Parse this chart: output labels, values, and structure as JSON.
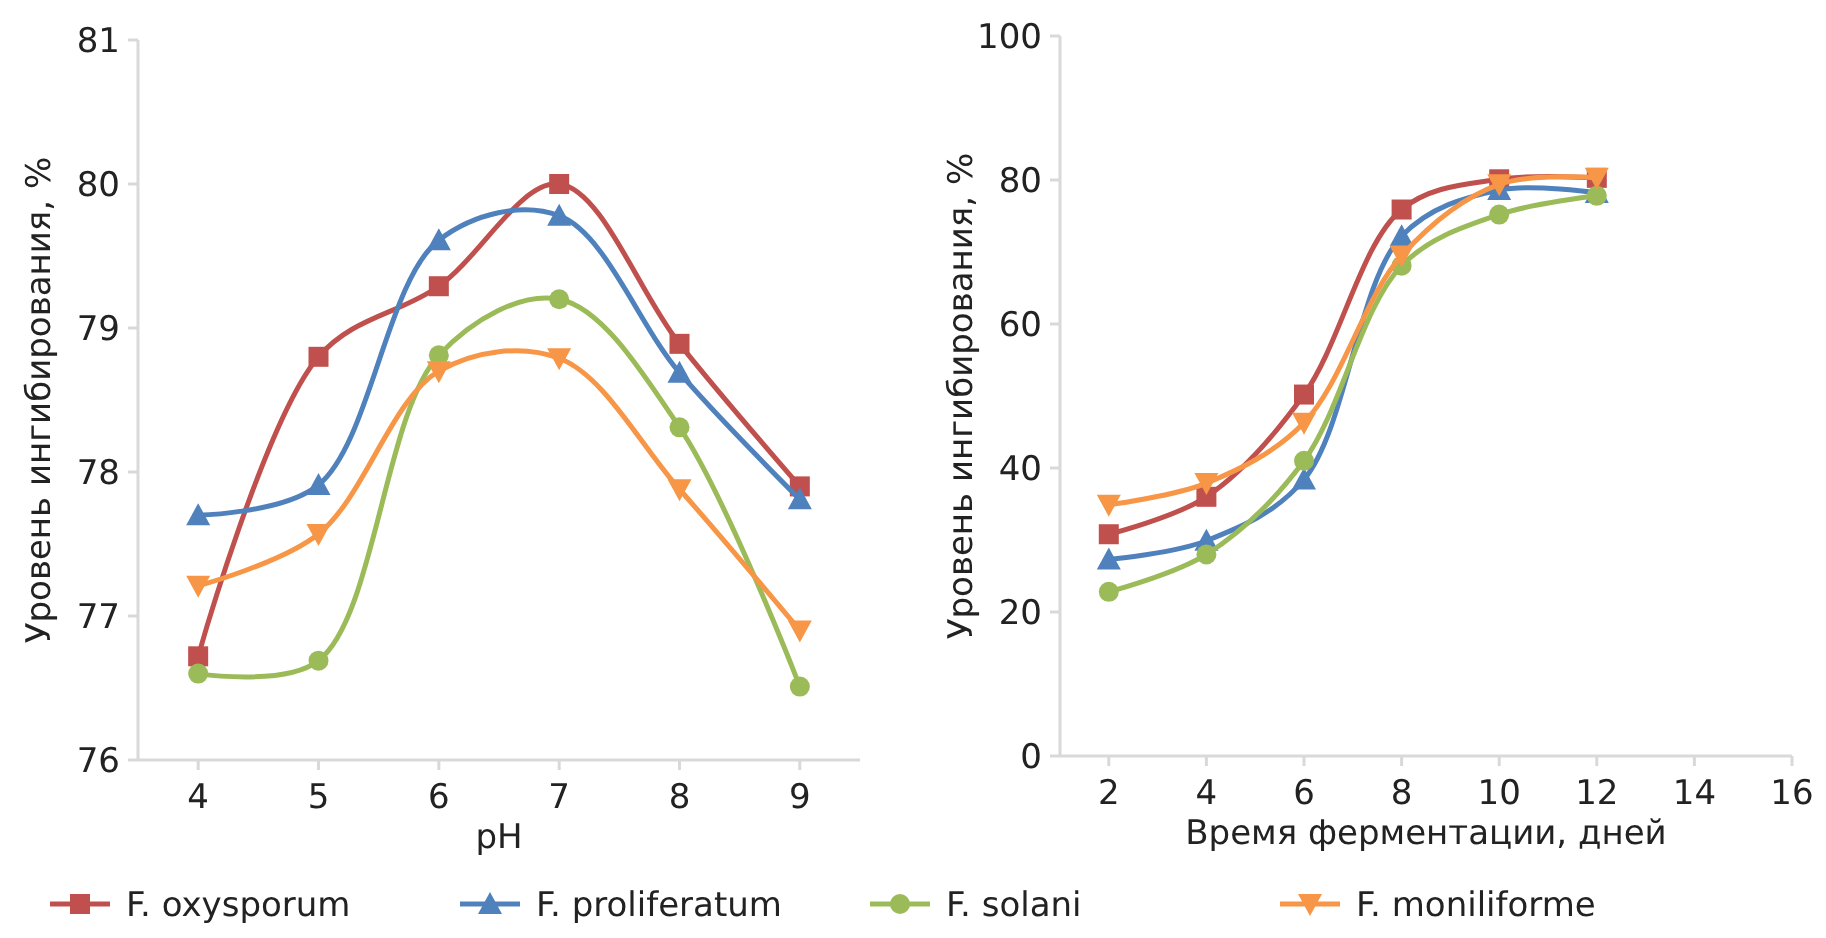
{
  "chart_data": [
    {
      "type": "line",
      "xlabel": "pH",
      "ylabel": "Уровень ингибирования, %",
      "x": [
        4,
        5,
        6,
        7,
        8,
        9
      ],
      "xlim": [
        3.5,
        9.5
      ],
      "xticks": [
        4,
        5,
        6,
        7,
        8,
        9
      ],
      "ylim": [
        76,
        81
      ],
      "yticks": [
        76,
        77,
        78,
        79,
        80,
        81
      ],
      "grid": false,
      "legend": "bottom",
      "series": [
        {
          "name": "F. oxysporum",
          "color": "#c0504d",
          "marker": "square",
          "values": [
            76.72,
            78.8,
            79.29,
            80.0,
            78.89,
            77.9
          ]
        },
        {
          "name": "F. proliferatum",
          "color": "#4f81bd",
          "marker": "triangle",
          "values": [
            77.7,
            77.91,
            79.61,
            79.78,
            78.69,
            77.81
          ]
        },
        {
          "name": "F. solani",
          "color": "#9bbb59",
          "marker": "circle",
          "values": [
            76.6,
            76.69,
            78.81,
            79.2,
            78.31,
            76.51
          ]
        },
        {
          "name": "F. moniliforme",
          "color": "#f79646",
          "marker": "triangle-down",
          "values": [
            77.21,
            77.57,
            78.7,
            78.79,
            77.88,
            76.9
          ]
        }
      ]
    },
    {
      "type": "line",
      "xlabel": "Время ферментации, дней",
      "ylabel": "Уровень ингибирования, %",
      "x": [
        2,
        4,
        6,
        8,
        10,
        12
      ],
      "xlim": [
        1,
        16
      ],
      "xticks": [
        2,
        4,
        6,
        8,
        10,
        12,
        14,
        16
      ],
      "ylim": [
        0,
        100
      ],
      "yticks": [
        0,
        20,
        40,
        60,
        80,
        100
      ],
      "grid": false,
      "legend": false,
      "series": [
        {
          "color": "#c0504d",
          "marker": "square",
          "values": [
            30.8,
            36.0,
            50.2,
            75.9,
            80.1,
            80.3
          ]
        },
        {
          "color": "#4f81bd",
          "marker": "triangle",
          "values": [
            27.3,
            29.9,
            38.4,
            72.2,
            78.6,
            78.2
          ]
        },
        {
          "color": "#9bbb59",
          "marker": "circle",
          "values": [
            22.8,
            28.0,
            41.0,
            68.1,
            75.2,
            77.8
          ]
        },
        {
          "color": "#f79646",
          "marker": "triangle-down",
          "values": [
            34.9,
            37.9,
            46.3,
            69.5,
            79.4,
            80.3
          ]
        }
      ]
    }
  ]
}
